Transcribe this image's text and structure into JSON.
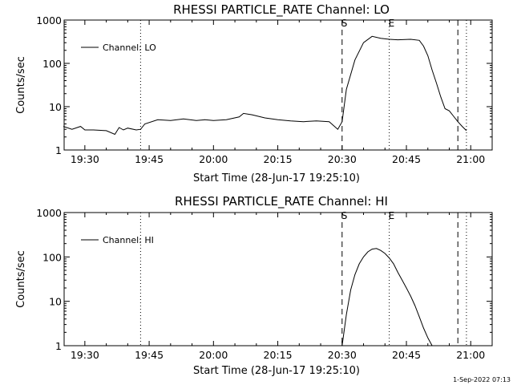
{
  "chart_data": [
    {
      "type": "line",
      "title": "RHESSI PARTICLE_RATE Channel: LO",
      "xlabel": "Start Time (28-Jun-17 19:25:10)",
      "ylabel": "Counts/sec",
      "yscale": "log",
      "ylim": [
        1,
        1000
      ],
      "xlim": [
        "19:25:10",
        "21:05:00"
      ],
      "x_ticks": [
        "19:30",
        "19:45",
        "20:00",
        "20:15",
        "20:30",
        "20:45",
        "21:00"
      ],
      "y_ticks": [
        "1",
        "10",
        "100",
        "1000"
      ],
      "legend": {
        "position": "top-left",
        "entries": [
          "Channel: LO"
        ]
      },
      "markers": [
        {
          "label": "S",
          "time": "20:30",
          "style": "dashed"
        },
        {
          "label": "E",
          "time": "20:41",
          "style": "dotted"
        }
      ],
      "other_lines": [
        {
          "time": "19:43",
          "style": "dotted"
        },
        {
          "time": "20:57",
          "style": "dashed"
        },
        {
          "time": "20:59",
          "style": "dotted"
        }
      ],
      "series": [
        {
          "name": "Channel: LO",
          "x": [
            "19:25",
            "19:27",
            "19:29",
            "19:30",
            "19:32",
            "19:35",
            "19:37",
            "19:38",
            "19:39",
            "19:40",
            "19:42",
            "19:43",
            "19:44",
            "19:47",
            "19:50",
            "19:53",
            "19:56",
            "19:58",
            "20:00",
            "20:03",
            "20:06",
            "20:07",
            "20:09",
            "20:12",
            "20:15",
            "20:18",
            "20:21",
            "20:24",
            "20:27",
            "20:29",
            "20:30",
            "20:31",
            "20:33",
            "20:35",
            "20:37",
            "20:39",
            "20:41",
            "20:43",
            "20:46",
            "20:48",
            "20:49",
            "20:50",
            "20:51",
            "20:52",
            "20:53",
            "20:54",
            "20:55",
            "20:56",
            "20:57",
            "20:58",
            "20:59"
          ],
          "values": [
            3.5,
            3.0,
            3.5,
            2.9,
            2.9,
            2.8,
            2.3,
            3.3,
            2.9,
            3.2,
            2.9,
            3.0,
            4.0,
            5.0,
            4.8,
            5.2,
            4.8,
            5.0,
            4.8,
            5.0,
            5.8,
            7.0,
            6.5,
            5.5,
            5.0,
            4.7,
            4.5,
            4.7,
            4.5,
            3.0,
            4.5,
            25,
            120,
            300,
            420,
            380,
            360,
            350,
            360,
            340,
            250,
            150,
            70,
            35,
            17,
            9,
            8,
            6,
            4.5,
            3.5,
            2.8
          ]
        }
      ]
    },
    {
      "type": "line",
      "title": "RHESSI PARTICLE_RATE Channel: HI",
      "xlabel": "Start Time (28-Jun-17 19:25:10)",
      "ylabel": "Counts/sec",
      "yscale": "log",
      "ylim": [
        1,
        1000
      ],
      "xlim": [
        "19:25:10",
        "21:05:00"
      ],
      "x_ticks": [
        "19:30",
        "19:45",
        "20:00",
        "20:15",
        "20:30",
        "20:45",
        "21:00"
      ],
      "y_ticks": [
        "1",
        "10",
        "100",
        "1000"
      ],
      "legend": {
        "position": "top-left",
        "entries": [
          "Channel: HI"
        ]
      },
      "markers": [
        {
          "label": "S",
          "time": "20:30",
          "style": "dashed"
        },
        {
          "label": "E",
          "time": "20:41",
          "style": "dotted"
        }
      ],
      "other_lines": [
        {
          "time": "19:43",
          "style": "dotted"
        },
        {
          "time": "20:57",
          "style": "dashed"
        },
        {
          "time": "20:59",
          "style": "dotted"
        }
      ],
      "series": [
        {
          "name": "Channel: HI",
          "x": [
            "20:30",
            "20:31",
            "20:32",
            "20:33",
            "20:34",
            "20:35",
            "20:36",
            "20:37",
            "20:38",
            "20:39",
            "20:40",
            "20:41",
            "20:42",
            "20:43",
            "20:44",
            "20:45",
            "20:46",
            "20:47",
            "20:48",
            "20:49",
            "20:50",
            "20:51"
          ],
          "values": [
            1.0,
            5,
            18,
            40,
            70,
            100,
            130,
            150,
            155,
            140,
            120,
            95,
            70,
            45,
            30,
            20,
            13,
            8,
            4.5,
            2.5,
            1.5,
            1.0
          ]
        }
      ]
    }
  ],
  "footer": {
    "timestamp": "1-Sep-2022 07:13"
  }
}
